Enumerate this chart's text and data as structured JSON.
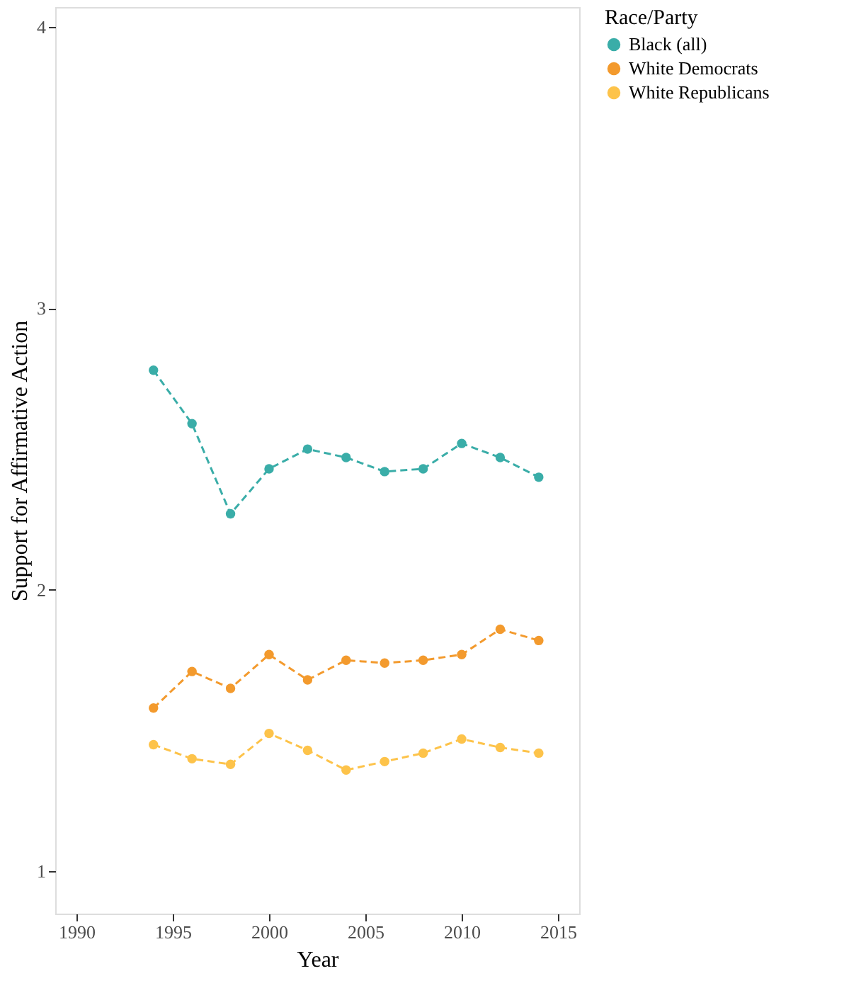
{
  "chart_data": {
    "type": "line",
    "xlabel": "Year",
    "ylabel": "Support for Affirmative Action",
    "legend_title": "Race/Party",
    "legend": "right",
    "marker": "circle",
    "line_style": "dashed",
    "grid": false,
    "x": [
      1994,
      1996,
      1998,
      2000,
      2002,
      2004,
      2006,
      2008,
      2010,
      2012,
      2014
    ],
    "xlim": [
      1988.9,
      2016.1
    ],
    "xticks": [
      1990,
      1995,
      2000,
      2005,
      2010,
      2015
    ],
    "ylim": [
      0.85,
      4.07
    ],
    "yticks": [
      1,
      2,
      3,
      4
    ],
    "series": [
      {
        "name": "Black (all)",
        "color": "#3aada8",
        "values": [
          2.78,
          2.59,
          2.27,
          2.43,
          2.5,
          2.47,
          2.42,
          2.43,
          2.52,
          2.47,
          2.4
        ]
      },
      {
        "name": "White Democrats",
        "color": "#f39a2d",
        "values": [
          1.58,
          1.71,
          1.65,
          1.77,
          1.68,
          1.75,
          1.74,
          1.75,
          1.77,
          1.86,
          1.82
        ]
      },
      {
        "name": "White Republicans",
        "color": "#fdc34a",
        "values": [
          1.45,
          1.4,
          1.38,
          1.49,
          1.43,
          1.36,
          1.39,
          1.42,
          1.47,
          1.44,
          1.42
        ]
      }
    ]
  }
}
